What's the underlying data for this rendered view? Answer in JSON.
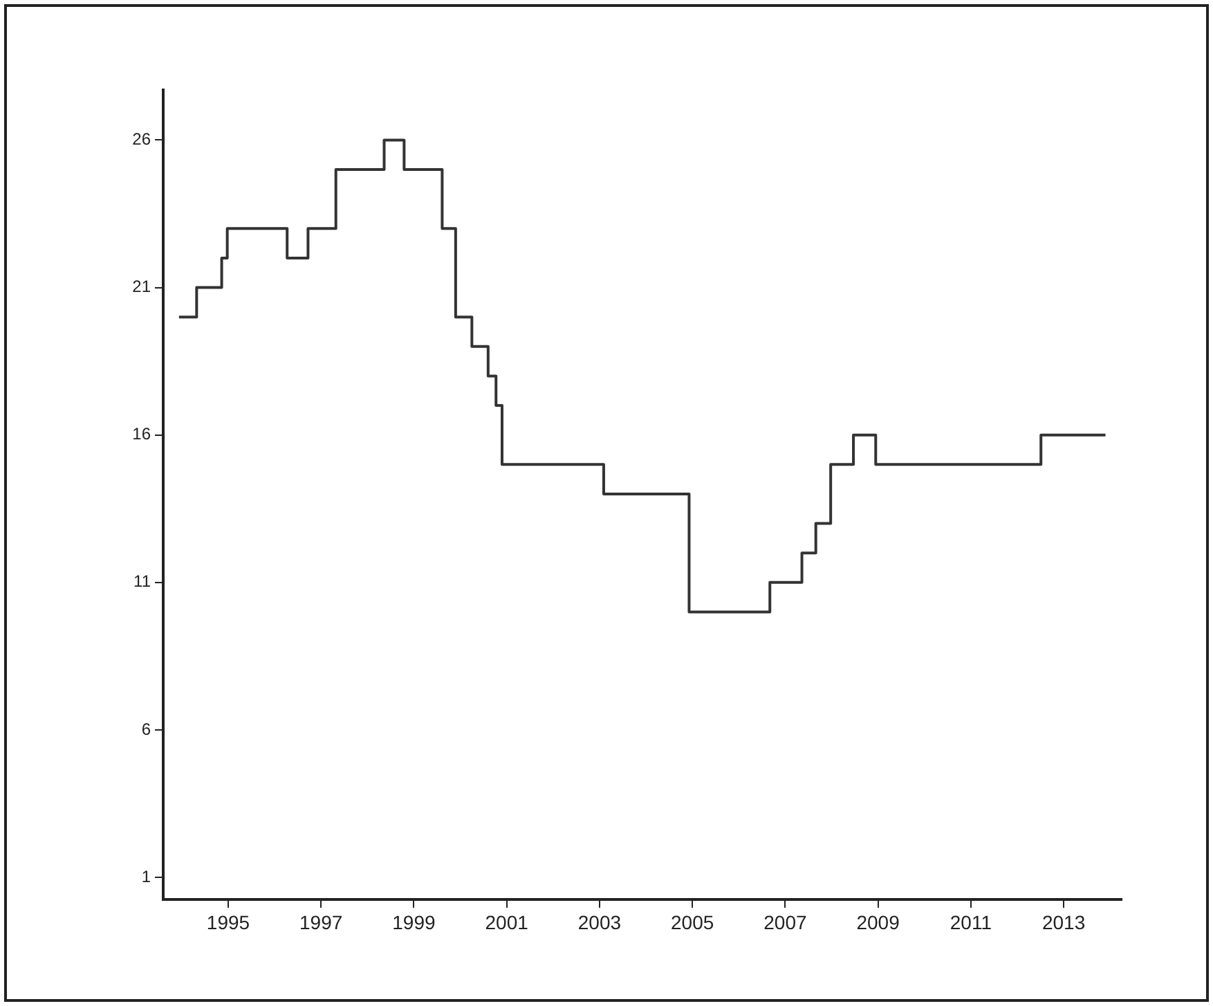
{
  "chart_data": {
    "type": "step",
    "x": [
      1993.94,
      1994.32,
      1994.86,
      1994.98,
      1996.27,
      1996.72,
      1997.32,
      1998.36,
      1998.79,
      1999.61,
      1999.9,
      2000.25,
      2000.6,
      2000.77,
      2000.9,
      2003.09,
      2004.93,
      2006.67,
      2007.36,
      2007.66,
      2007.98,
      2008.47,
      2008.95,
      2012.51,
      2013.9
    ],
    "series": [
      {
        "color": "#333333",
        "values": [
          20,
          21,
          22,
          23,
          22,
          23,
          25,
          26,
          25,
          23,
          20,
          19,
          18,
          17,
          15,
          14,
          10,
          11,
          12,
          13,
          15,
          16,
          15,
          16,
          16
        ]
      }
    ],
    "xlim": [
      1993.6,
      2014.25
    ],
    "xticks": [
      1995,
      1997,
      1999,
      2001,
      2003,
      2005,
      2007,
      2009,
      2011,
      2013
    ],
    "ylim": [
      0.25,
      27.7
    ],
    "yticks": [
      1,
      6,
      11,
      16,
      21,
      26
    ],
    "grid": false,
    "legend": false,
    "marker": "none",
    "line_style": "solid"
  }
}
